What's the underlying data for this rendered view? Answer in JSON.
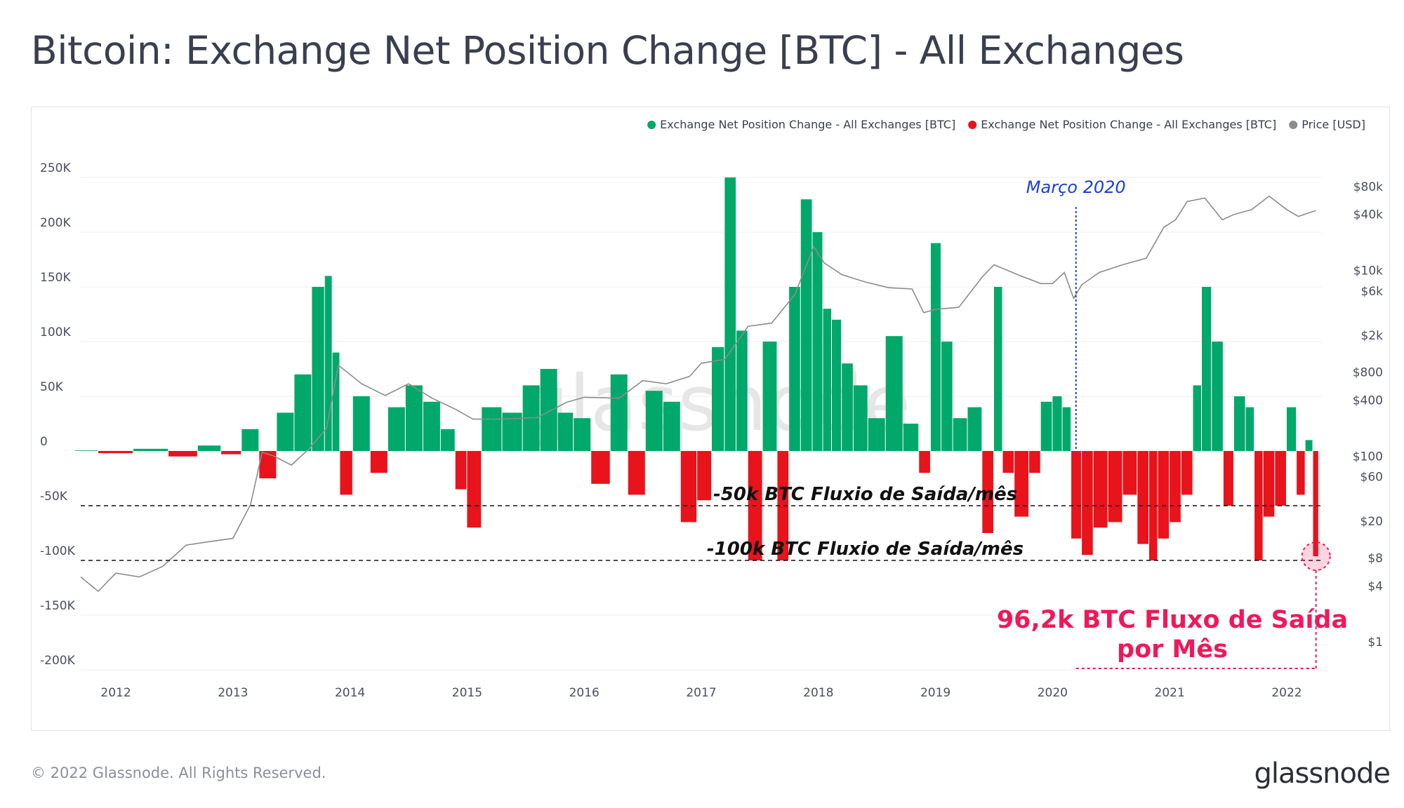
{
  "title": "Bitcoin: Exchange Net Position Change [BTC] - All Exchanges",
  "footer": "© 2022 Glassnode. All Rights Reserved.",
  "brand": "glassnode",
  "watermark": "glassnode",
  "colors": {
    "positive": "#00a86b",
    "negative": "#e8131b",
    "price": "#8c8c8c",
    "march_marker": "#1a3fd6",
    "highlight": "#f0185a"
  },
  "chart_data": {
    "type": "bar",
    "title": "Bitcoin: Exchange Net Position Change [BTC] - All Exchanges",
    "legend": [
      {
        "name": "Exchange Net Position Change - All Exchanges [BTC]",
        "color": "#00a86b"
      },
      {
        "name": "Exchange Net Position Change - All Exchanges [BTC]",
        "color": "#e8131b"
      },
      {
        "name": "Price [USD]",
        "color": "#8c8c8c"
      }
    ],
    "legend_position": "top-right",
    "y_left": {
      "ticks": [
        250000,
        200000,
        150000,
        100000,
        50000,
        0,
        -50000,
        -100000,
        -150000,
        -200000
      ],
      "labels": [
        "250K",
        "200K",
        "150K",
        "100K",
        "50K",
        "0",
        "-50K",
        "-100K",
        "-150K",
        "-200K"
      ],
      "range": [
        -200000,
        250000
      ]
    },
    "y_right": {
      "scale": "log",
      "ticks": [
        1,
        4,
        8,
        20,
        60,
        100,
        400,
        800,
        2000,
        6000,
        10000,
        40000,
        80000
      ],
      "labels": [
        "$1",
        "$4",
        "$8",
        "$20",
        "$60",
        "$100",
        "$400",
        "$800",
        "$2k",
        "$6k",
        "$10k",
        "$40k",
        "$80k"
      ]
    },
    "x_ticks": [
      "2012",
      "2013",
      "2014",
      "2015",
      "2016",
      "2017",
      "2018",
      "2019",
      "2020",
      "2021",
      "2022"
    ],
    "x_range": [
      2011.7,
      2022.3
    ],
    "series": [
      {
        "name": "Exchange Net Position Change - All Exchanges [BTC]",
        "x": [
          2011.7,
          2012.0,
          2012.3,
          2012.6,
          2012.8,
          2013.0,
          2013.15,
          2013.3,
          2013.45,
          2013.6,
          2013.75,
          2013.82,
          2013.88,
          2013.95,
          2014.1,
          2014.25,
          2014.4,
          2014.55,
          2014.7,
          2014.85,
          2014.95,
          2015.05,
          2015.2,
          2015.4,
          2015.55,
          2015.7,
          2015.85,
          2015.97,
          2016.15,
          2016.3,
          2016.45,
          2016.6,
          2016.75,
          2016.9,
          2017.03,
          2017.15,
          2017.25,
          2017.35,
          2017.45,
          2017.6,
          2017.7,
          2017.8,
          2017.9,
          2018.0,
          2018.08,
          2018.15,
          2018.25,
          2018.35,
          2018.5,
          2018.65,
          2018.8,
          2018.92,
          2019.0,
          2019.1,
          2019.2,
          2019.35,
          2019.45,
          2019.55,
          2019.6,
          2019.75,
          2019.85,
          2019.95,
          2020.05,
          2020.12,
          2020.2,
          2020.3,
          2020.4,
          2020.55,
          2020.65,
          2020.8,
          2020.85,
          2020.95,
          2021.05,
          2021.15,
          2021.25,
          2021.3,
          2021.42,
          2021.5,
          2021.6,
          2021.7,
          2021.75,
          2021.85,
          2021.95,
          2022.05,
          2022.12,
          2022.2,
          2022.25
        ],
        "y": [
          500,
          -2000,
          2000,
          -5000,
          5000,
          -3000,
          20000,
          -25000,
          35000,
          70000,
          150000,
          160000,
          90000,
          -40000,
          50000,
          -20000,
          40000,
          60000,
          45000,
          20000,
          -35000,
          -70000,
          40000,
          35000,
          60000,
          75000,
          35000,
          30000,
          -30000,
          70000,
          -40000,
          55000,
          45000,
          -65000,
          -45000,
          95000,
          250000,
          110000,
          -100000,
          100000,
          -100000,
          150000,
          230000,
          200000,
          130000,
          120000,
          80000,
          60000,
          30000,
          105000,
          25000,
          -20000,
          190000,
          100000,
          30000,
          40000,
          -75000,
          150000,
          -20000,
          -60000,
          -20000,
          45000,
          50000,
          40000,
          -80000,
          -95000,
          -70000,
          -65000,
          -40000,
          -85000,
          -100000,
          -80000,
          -65000,
          -40000,
          60000,
          150000,
          100000,
          -50000,
          50000,
          40000,
          -100000,
          -60000,
          -50000,
          40000,
          -40000,
          10000,
          -96200
        ]
      },
      {
        "name": "Price [USD]",
        "x": [
          2011.7,
          2011.85,
          2012.0,
          2012.2,
          2012.4,
          2012.6,
          2012.8,
          2013.0,
          2013.15,
          2013.25,
          2013.35,
          2013.5,
          2013.65,
          2013.8,
          2013.9,
          2013.95,
          2014.1,
          2014.3,
          2014.5,
          2014.7,
          2014.9,
          2015.05,
          2015.3,
          2015.6,
          2015.85,
          2016.0,
          2016.3,
          2016.5,
          2016.7,
          2016.9,
          2017.0,
          2017.2,
          2017.4,
          2017.6,
          2017.8,
          2017.96,
          2018.05,
          2018.2,
          2018.4,
          2018.6,
          2018.8,
          2018.9,
          2019.0,
          2019.2,
          2019.4,
          2019.5,
          2019.7,
          2019.9,
          2020.0,
          2020.1,
          2020.18,
          2020.25,
          2020.4,
          2020.6,
          2020.8,
          2020.95,
          2021.05,
          2021.15,
          2021.3,
          2021.45,
          2021.55,
          2021.7,
          2021.85,
          2022.0,
          2022.1,
          2022.2,
          2022.25
        ],
        "y": [
          5,
          3.5,
          5.5,
          5,
          6.5,
          11,
          12,
          13,
          30,
          110,
          100,
          80,
          120,
          200,
          950,
          850,
          600,
          450,
          600,
          420,
          320,
          250,
          250,
          260,
          380,
          430,
          420,
          650,
          600,
          720,
          1000,
          1100,
          2500,
          2700,
          5500,
          18000,
          12000,
          9000,
          7500,
          6500,
          6300,
          3500,
          3800,
          4000,
          8500,
          11500,
          9000,
          7200,
          7200,
          9500,
          5000,
          7000,
          9500,
          11500,
          13500,
          29000,
          35000,
          55000,
          60000,
          35000,
          40000,
          45000,
          63000,
          45000,
          38000,
          42000,
          44000
        ]
      }
    ],
    "annotations": [
      {
        "text": "Março 2020",
        "x": 2020.2
      },
      {
        "text": "-50k BTC Fluxio de Saída/mês",
        "y": -50000
      },
      {
        "text": "-100k BTC Fluxio de Saída/mês",
        "y": -100000
      },
      {
        "text": "96,2k BTC Fluxo de Saída",
        "text2": "por Mês",
        "y": -96200
      }
    ],
    "grid": true
  }
}
